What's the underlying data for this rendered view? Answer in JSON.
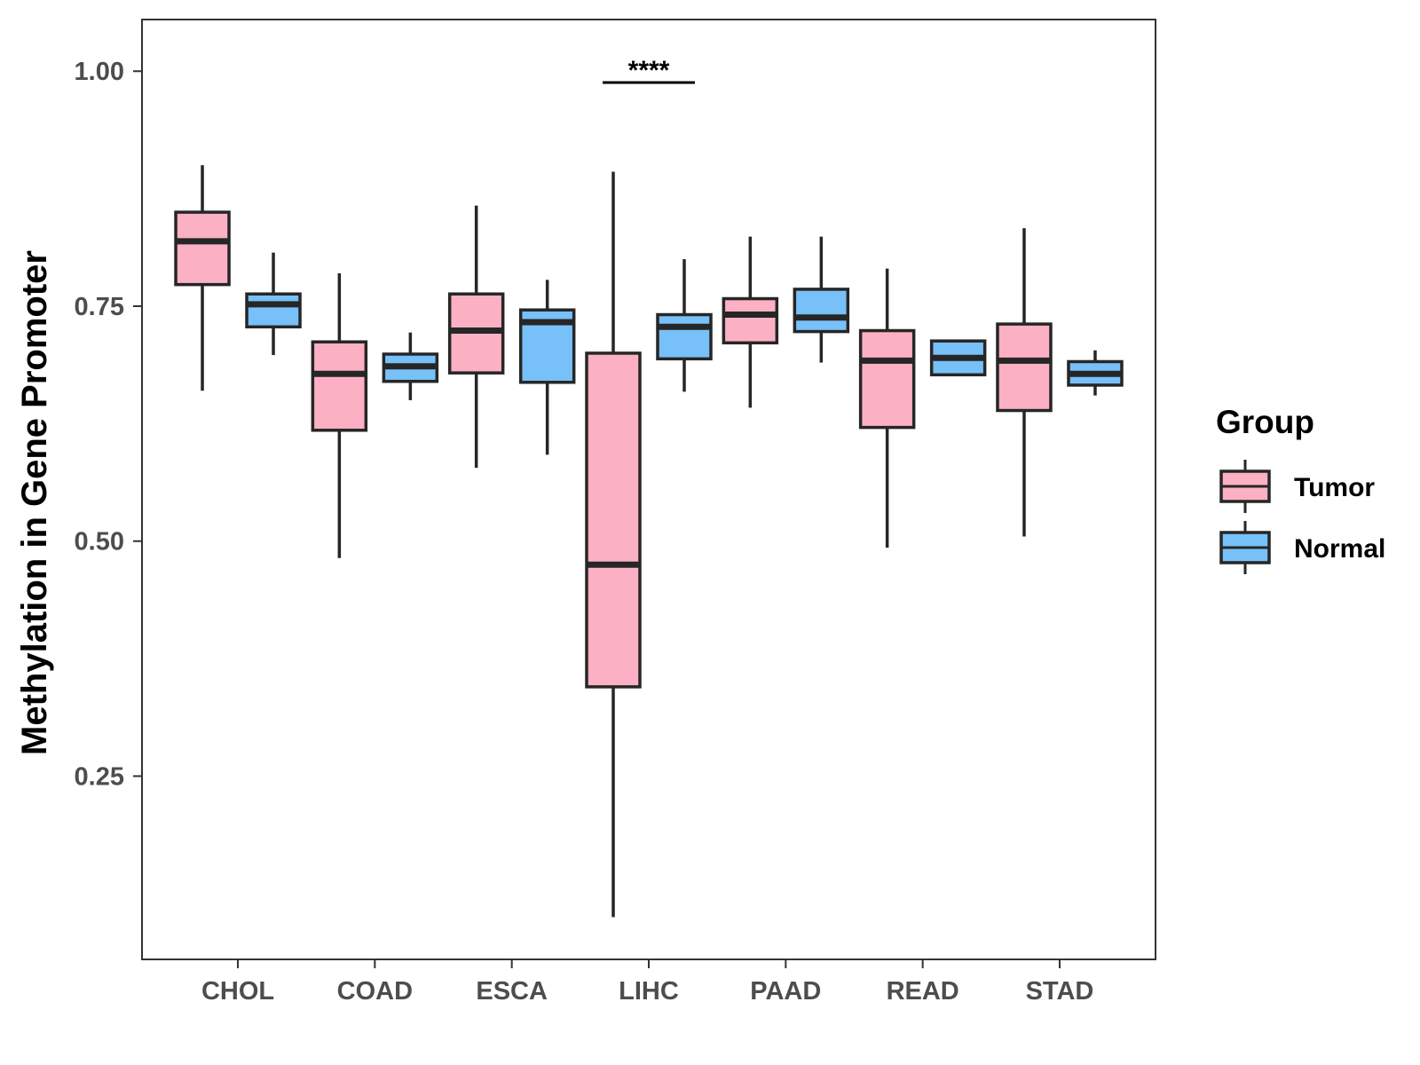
{
  "chart_data": {
    "type": "boxplot",
    "title": "",
    "xlabel": "",
    "ylabel": "Methylation in Gene Promoter",
    "ylim": [
      0.055,
      1.055
    ],
    "yticks": [
      0.25,
      0.5,
      0.75,
      1.0
    ],
    "ytick_labels": [
      "0.25",
      "0.50",
      "0.75",
      "1.00"
    ],
    "categories": [
      "CHOL",
      "COAD",
      "ESCA",
      "LIHC",
      "PAAD",
      "READ",
      "STAD"
    ],
    "grid": false,
    "legend": {
      "title": "Group",
      "position": "right",
      "entries": [
        {
          "name": "Tumor",
          "color": "#FBB1C3"
        },
        {
          "name": "Normal",
          "color": "#78C0F8"
        }
      ]
    },
    "series": [
      {
        "name": "Tumor",
        "color": "#FBB1C3",
        "boxes": [
          {
            "category": "CHOL",
            "whisker_low": 0.66,
            "q1": 0.773,
            "median": 0.819,
            "q3": 0.85,
            "whisker_high": 0.9
          },
          {
            "category": "COAD",
            "whisker_low": 0.482,
            "q1": 0.618,
            "median": 0.678,
            "q3": 0.712,
            "whisker_high": 0.785
          },
          {
            "category": "ESCA",
            "whisker_low": 0.578,
            "q1": 0.679,
            "median": 0.724,
            "q3": 0.763,
            "whisker_high": 0.857
          },
          {
            "category": "LIHC",
            "whisker_low": 0.1,
            "q1": 0.345,
            "median": 0.475,
            "q3": 0.7,
            "whisker_high": 0.893
          },
          {
            "category": "PAAD",
            "whisker_low": 0.642,
            "q1": 0.711,
            "median": 0.741,
            "q3": 0.758,
            "whisker_high": 0.824
          },
          {
            "category": "READ",
            "whisker_low": 0.493,
            "q1": 0.621,
            "median": 0.692,
            "q3": 0.724,
            "whisker_high": 0.79
          },
          {
            "category": "STAD",
            "whisker_low": 0.505,
            "q1": 0.639,
            "median": 0.692,
            "q3": 0.731,
            "whisker_high": 0.833
          }
        ]
      },
      {
        "name": "Normal",
        "color": "#78C0F8",
        "boxes": [
          {
            "category": "CHOL",
            "whisker_low": 0.698,
            "q1": 0.728,
            "median": 0.752,
            "q3": 0.763,
            "whisker_high": 0.807
          },
          {
            "category": "COAD",
            "whisker_low": 0.65,
            "q1": 0.67,
            "median": 0.686,
            "q3": 0.699,
            "whisker_high": 0.722
          },
          {
            "category": "ESCA",
            "whisker_low": 0.592,
            "q1": 0.669,
            "median": 0.733,
            "q3": 0.746,
            "whisker_high": 0.778
          },
          {
            "category": "LIHC",
            "whisker_low": 0.659,
            "q1": 0.694,
            "median": 0.728,
            "q3": 0.741,
            "whisker_high": 0.8
          },
          {
            "category": "PAAD",
            "whisker_low": 0.69,
            "q1": 0.723,
            "median": 0.738,
            "q3": 0.768,
            "whisker_high": 0.824
          },
          {
            "category": "READ",
            "whisker_low": 0.677,
            "q1": 0.677,
            "median": 0.695,
            "q3": 0.713,
            "whisker_high": 0.713
          },
          {
            "category": "STAD",
            "whisker_low": 0.655,
            "q1": 0.666,
            "median": 0.678,
            "q3": 0.691,
            "whisker_high": 0.703
          }
        ]
      }
    ],
    "annotations": [
      {
        "category": "LIHC",
        "text": "****",
        "bracket_y": 0.988
      }
    ]
  }
}
